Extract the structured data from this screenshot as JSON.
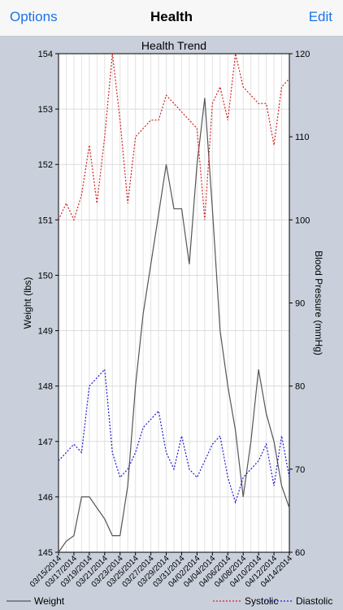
{
  "nav": {
    "left_label": "Options",
    "title": "Health",
    "right_label": "Edit"
  },
  "chart_data": {
    "type": "line",
    "title": "Health Trend",
    "ylabel_left": "Weight (lbs)",
    "ylabel_right": "Blood Pressure (mmHg)",
    "ylim_left": [
      145,
      154
    ],
    "yticks_left": [
      145,
      146,
      147,
      148,
      149,
      150,
      151,
      152,
      153,
      154
    ],
    "ylim_right": [
      60,
      120
    ],
    "yticks_right": [
      60,
      70,
      80,
      90,
      100,
      110,
      120
    ],
    "x_tick_labels": [
      "03/15/2014",
      "03/17/2014",
      "03/19/2014",
      "03/21/2014",
      "03/23/2014",
      "03/25/2014",
      "03/27/2014",
      "03/29/2014",
      "03/31/2014",
      "04/02/2014",
      "04/04/2014",
      "04/06/2014",
      "04/08/2014",
      "04/10/2014",
      "04/12/2014",
      "04/14/2014"
    ],
    "legend_position": "bottom",
    "grid": true,
    "series": [
      {
        "name": "Weight",
        "axis": "left",
        "color": "#555555",
        "style": "solid",
        "values": [
          145.0,
          145.2,
          145.3,
          146.0,
          146.0,
          145.8,
          145.6,
          145.3,
          145.3,
          146.2,
          148.0,
          149.3,
          150.2,
          151.1,
          152.0,
          151.2,
          151.2,
          150.2,
          152.0,
          153.2,
          151.2,
          149.0,
          148.0,
          147.2,
          146.0,
          147.0,
          148.3,
          147.5,
          147.0,
          146.2,
          145.8
        ]
      },
      {
        "name": "Systolic",
        "axis": "right",
        "color": "#d42020",
        "style": "dotted",
        "values": [
          100,
          102,
          100,
          103,
          109,
          102,
          110,
          120,
          112,
          102,
          110,
          111,
          112,
          112,
          115,
          114,
          113,
          112,
          111,
          100,
          114,
          116,
          112,
          120,
          116,
          115,
          114,
          114,
          109,
          116,
          117
        ]
      },
      {
        "name": "Diastolic",
        "axis": "right",
        "color": "#1a1ad4",
        "style": "dotted",
        "values": [
          71,
          72,
          73,
          72,
          80,
          81,
          82,
          72,
          69,
          70,
          72,
          75,
          76,
          77,
          72,
          70,
          74,
          70,
          69,
          71,
          73,
          74,
          69,
          66,
          69,
          70,
          71,
          73,
          68,
          74,
          69
        ]
      }
    ]
  }
}
